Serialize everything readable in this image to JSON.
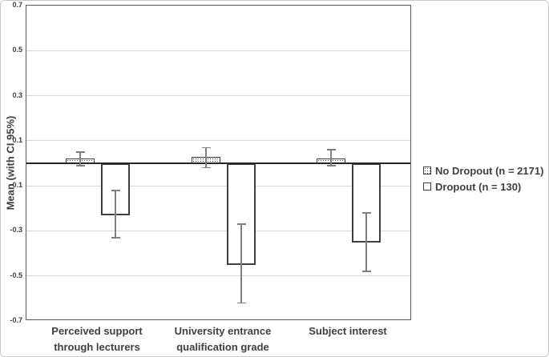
{
  "figure": {
    "y_axis_title": "Mean (with CI 95%)",
    "colors": {
      "text": "#404040",
      "gridline": "#d9d9d9",
      "zero_line": "#262626",
      "plot_border": "#595959",
      "error_bar": "#7f7f7f",
      "bar_outline": "#404040",
      "bar_fill_dropout": "#ffffff"
    },
    "legend": {
      "items": [
        {
          "label": "No Dropout (n = 2171)",
          "swatch": "dotted-pattern-swatch"
        },
        {
          "label": "Dropout (n = 130)",
          "swatch": "white-swatch"
        }
      ]
    }
  },
  "chart_data": {
    "type": "bar",
    "title": "",
    "xlabel": "",
    "ylabel": "Mean (with CI 95%)",
    "ylim": [
      -0.7,
      0.7
    ],
    "yticks": [
      0.7,
      0.5,
      0.3,
      0.1,
      -0.1,
      -0.3,
      -0.5,
      -0.7
    ],
    "grid": true,
    "legend_position": "right-outside",
    "error_bars": "95% confidence interval",
    "categories": [
      "Perceived support through lecturers",
      "University entrance qualification grade",
      "Subject interest"
    ],
    "categories_lines": [
      [
        "Perceived support",
        "through lecturers"
      ],
      [
        "University entrance",
        "qualification grade"
      ],
      [
        "Subject interest"
      ]
    ],
    "series": [
      {
        "name": "No Dropout (n = 2171)",
        "fill": "dotted",
        "values": [
          0.02,
          0.03,
          0.02
        ],
        "ci_low": [
          -0.01,
          -0.02,
          -0.01
        ],
        "ci_high": [
          0.05,
          0.07,
          0.06
        ]
      },
      {
        "name": "Dropout (n = 130)",
        "fill": "white",
        "values": [
          -0.23,
          -0.45,
          -0.35
        ],
        "ci_low": [
          -0.33,
          -0.62,
          -0.48
        ],
        "ci_high": [
          -0.12,
          -0.27,
          -0.22
        ]
      }
    ]
  }
}
